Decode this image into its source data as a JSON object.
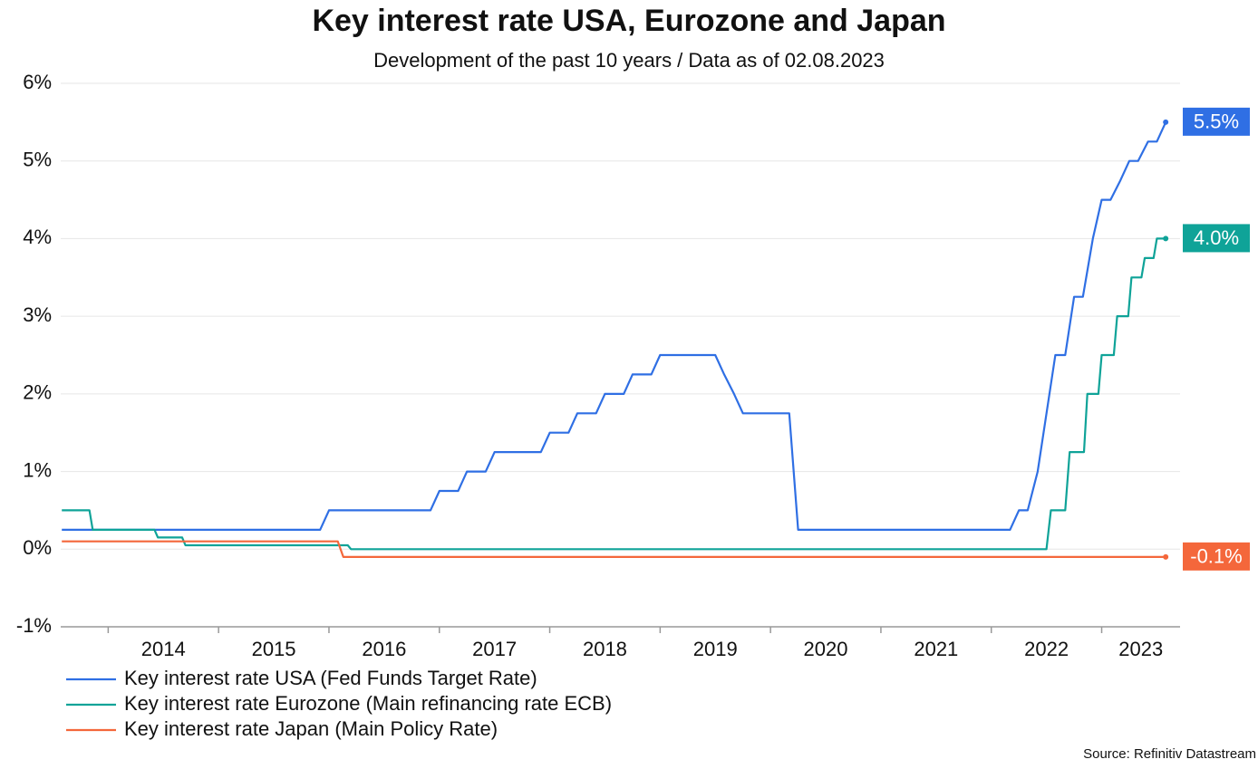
{
  "chart_data": {
    "type": "line",
    "title": "Key interest rate USA, Eurozone and Japan",
    "subtitle": "Development of the past 10 years / Data as of 02.08.2023",
    "source": "Source: Refinitiv Datastream",
    "xlim": [
      2013.57,
      2023.71
    ],
    "xticks": [
      2014,
      2015,
      2016,
      2017,
      2018,
      2019,
      2020,
      2021,
      2022,
      2023
    ],
    "ylim": [
      -1,
      6
    ],
    "yticks": [
      {
        "value": -1,
        "label": "-1%"
      },
      {
        "value": 0,
        "label": "0%"
      },
      {
        "value": 1,
        "label": "1%"
      },
      {
        "value": 2,
        "label": "2%"
      },
      {
        "value": 3,
        "label": "3%"
      },
      {
        "value": 4,
        "label": "4%"
      },
      {
        "value": 5,
        "label": "5%"
      },
      {
        "value": 6,
        "label": "6%"
      }
    ],
    "grid": true,
    "legend": "bottom-left",
    "series": [
      {
        "name": "Key interest rate USA (Fed Funds Target Rate)",
        "color": "#2f6fe4",
        "end_label": "5.5%",
        "x": [
          2013.58,
          2015.92,
          2016.0,
          2016.92,
          2017.0,
          2017.17,
          2017.25,
          2017.42,
          2017.5,
          2017.92,
          2018.0,
          2018.17,
          2018.25,
          2018.42,
          2018.5,
          2018.67,
          2018.75,
          2018.92,
          2019.0,
          2019.5,
          2019.58,
          2019.67,
          2019.75,
          2020.17,
          2020.25,
          2022.17,
          2022.25,
          2022.33,
          2022.42,
          2022.58,
          2022.67,
          2022.75,
          2022.83,
          2022.92,
          2023.0,
          2023.08,
          2023.17,
          2023.25,
          2023.33,
          2023.42,
          2023.5,
          2023.58
        ],
        "values": [
          0.25,
          0.25,
          0.5,
          0.5,
          0.75,
          0.75,
          1.0,
          1.0,
          1.25,
          1.25,
          1.5,
          1.5,
          1.75,
          1.75,
          2.0,
          2.0,
          2.25,
          2.25,
          2.5,
          2.5,
          2.25,
          2.0,
          1.75,
          1.75,
          0.25,
          0.25,
          0.5,
          0.5,
          1.0,
          2.5,
          2.5,
          3.25,
          3.25,
          4.0,
          4.5,
          4.5,
          4.75,
          5.0,
          5.0,
          5.25,
          5.25,
          5.5
        ]
      },
      {
        "name": "Key interest rate Eurozone (Main refinancing rate ECB)",
        "color": "#0fa398",
        "end_label": "4.0%",
        "x": [
          2013.58,
          2013.83,
          2013.86,
          2014.42,
          2014.45,
          2014.67,
          2014.7,
          2016.17,
          2016.2,
          2022.5,
          2022.54,
          2022.67,
          2022.71,
          2022.84,
          2022.87,
          2022.97,
          2023.0,
          2023.11,
          2023.14,
          2023.24,
          2023.27,
          2023.36,
          2023.39,
          2023.47,
          2023.5,
          2023.58
        ],
        "values": [
          0.5,
          0.5,
          0.25,
          0.25,
          0.15,
          0.15,
          0.05,
          0.05,
          0.0,
          0.0,
          0.5,
          0.5,
          1.25,
          1.25,
          2.0,
          2.0,
          2.5,
          2.5,
          3.0,
          3.0,
          3.5,
          3.5,
          3.75,
          3.75,
          4.0,
          4.0
        ]
      },
      {
        "name": "Key interest rate Japan (Main Policy Rate)",
        "color": "#f4673b",
        "end_label": "-0.1%",
        "x": [
          2013.58,
          2016.08,
          2016.13,
          2023.58
        ],
        "values": [
          0.1,
          0.1,
          -0.1,
          -0.1
        ]
      }
    ]
  }
}
